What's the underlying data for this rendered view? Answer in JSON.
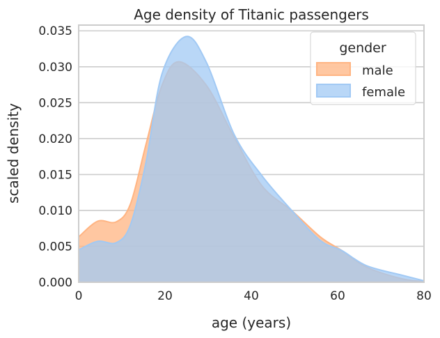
{
  "chart_data": {
    "type": "area",
    "title": "Age density of Titanic passengers",
    "xlabel": "age (years)",
    "ylabel": "scaled density",
    "xlim": [
      0,
      80
    ],
    "ylim": [
      0,
      0.0358
    ],
    "xticks": [
      0,
      20,
      40,
      60,
      80
    ],
    "xtick_labels": [
      "0",
      "20",
      "40",
      "60",
      "80"
    ],
    "yticks": [
      0,
      0.005,
      0.01,
      0.015,
      0.02,
      0.025,
      0.03,
      0.035
    ],
    "ytick_labels": [
      "0.000",
      "0.005",
      "0.010",
      "0.015",
      "0.020",
      "0.025",
      "0.030",
      "0.035"
    ],
    "grid": "horizontal",
    "legend": {
      "title": "gender",
      "placement": "top-right"
    },
    "series": [
      {
        "name": "male",
        "color": "#ffb482",
        "x": [
          0,
          4.4,
          8.7,
          12,
          15.6,
          19.3,
          23.2,
          29.6,
          36,
          42.5,
          49.5,
          56,
          61,
          66.7,
          74.8,
          80
        ],
        "y": [
          0.0063,
          0.0085,
          0.0084,
          0.0109,
          0.0192,
          0.0274,
          0.0307,
          0.0274,
          0.0202,
          0.0134,
          0.0099,
          0.0063,
          0.0044,
          0.0021,
          0.0005,
          0.0001
        ]
      },
      {
        "name": "female",
        "color": "#a1c9f4",
        "x": [
          0,
          4.4,
          8.7,
          12,
          15.6,
          19.3,
          24.8,
          29.6,
          36,
          42.5,
          49.5,
          56,
          61,
          66.7,
          74.8,
          80
        ],
        "y": [
          0.0045,
          0.0057,
          0.0055,
          0.008,
          0.0167,
          0.029,
          0.0342,
          0.0306,
          0.0206,
          0.0148,
          0.0099,
          0.0058,
          0.0044,
          0.0023,
          0.001,
          0.0002
        ]
      }
    ]
  }
}
